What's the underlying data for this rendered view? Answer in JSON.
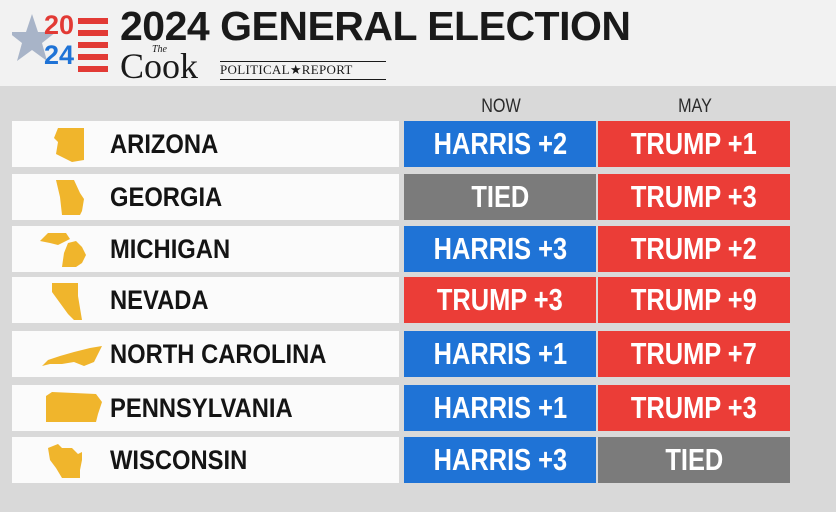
{
  "header": {
    "logo_year_top": "20",
    "logo_year_bottom": "24",
    "title": "2024 GENERAL ELECTION",
    "publisher": {
      "the": "The",
      "name": "Cook",
      "subtitle": "POLITICAL★REPORT"
    }
  },
  "columns": {
    "now": "NOW",
    "may": "MAY"
  },
  "colors": {
    "harris": "#1f73d6",
    "trump": "#eb3d37",
    "tied": "#7b7b7b",
    "state_icon": "#f0b52c",
    "logo_red": "#e23a35",
    "logo_blue": "#1f73d6",
    "logo_star": "#a8b4c8"
  },
  "states": [
    {
      "name": "ARIZONA",
      "icon": "arizona-icon",
      "now": {
        "label": "HARRIS +2",
        "leader": "harris"
      },
      "may": {
        "label": "TRUMP +1",
        "leader": "trump"
      }
    },
    {
      "name": "GEORGIA",
      "icon": "georgia-icon",
      "now": {
        "label": "TIED",
        "leader": "tied"
      },
      "may": {
        "label": "TRUMP +3",
        "leader": "trump"
      }
    },
    {
      "name": "MICHIGAN",
      "icon": "michigan-icon",
      "now": {
        "label": "HARRIS +3",
        "leader": "harris"
      },
      "may": {
        "label": "TRUMP +2",
        "leader": "trump"
      }
    },
    {
      "name": "NEVADA",
      "icon": "nevada-icon",
      "now": {
        "label": "TRUMP +3",
        "leader": "trump"
      },
      "may": {
        "label": "TRUMP +9",
        "leader": "trump"
      }
    },
    {
      "name": "NORTH CAROLINA",
      "icon": "north-carolina-icon",
      "now": {
        "label": "HARRIS +1",
        "leader": "harris"
      },
      "may": {
        "label": "TRUMP +7",
        "leader": "trump"
      }
    },
    {
      "name": "PENNSYLVANIA",
      "icon": "pennsylvania-icon",
      "now": {
        "label": "HARRIS +1",
        "leader": "harris"
      },
      "may": {
        "label": "TRUMP +3",
        "leader": "trump"
      }
    },
    {
      "name": "WISCONSIN",
      "icon": "wisconsin-icon",
      "now": {
        "label": "HARRIS +3",
        "leader": "harris"
      },
      "may": {
        "label": "TIED",
        "leader": "tied"
      }
    }
  ]
}
